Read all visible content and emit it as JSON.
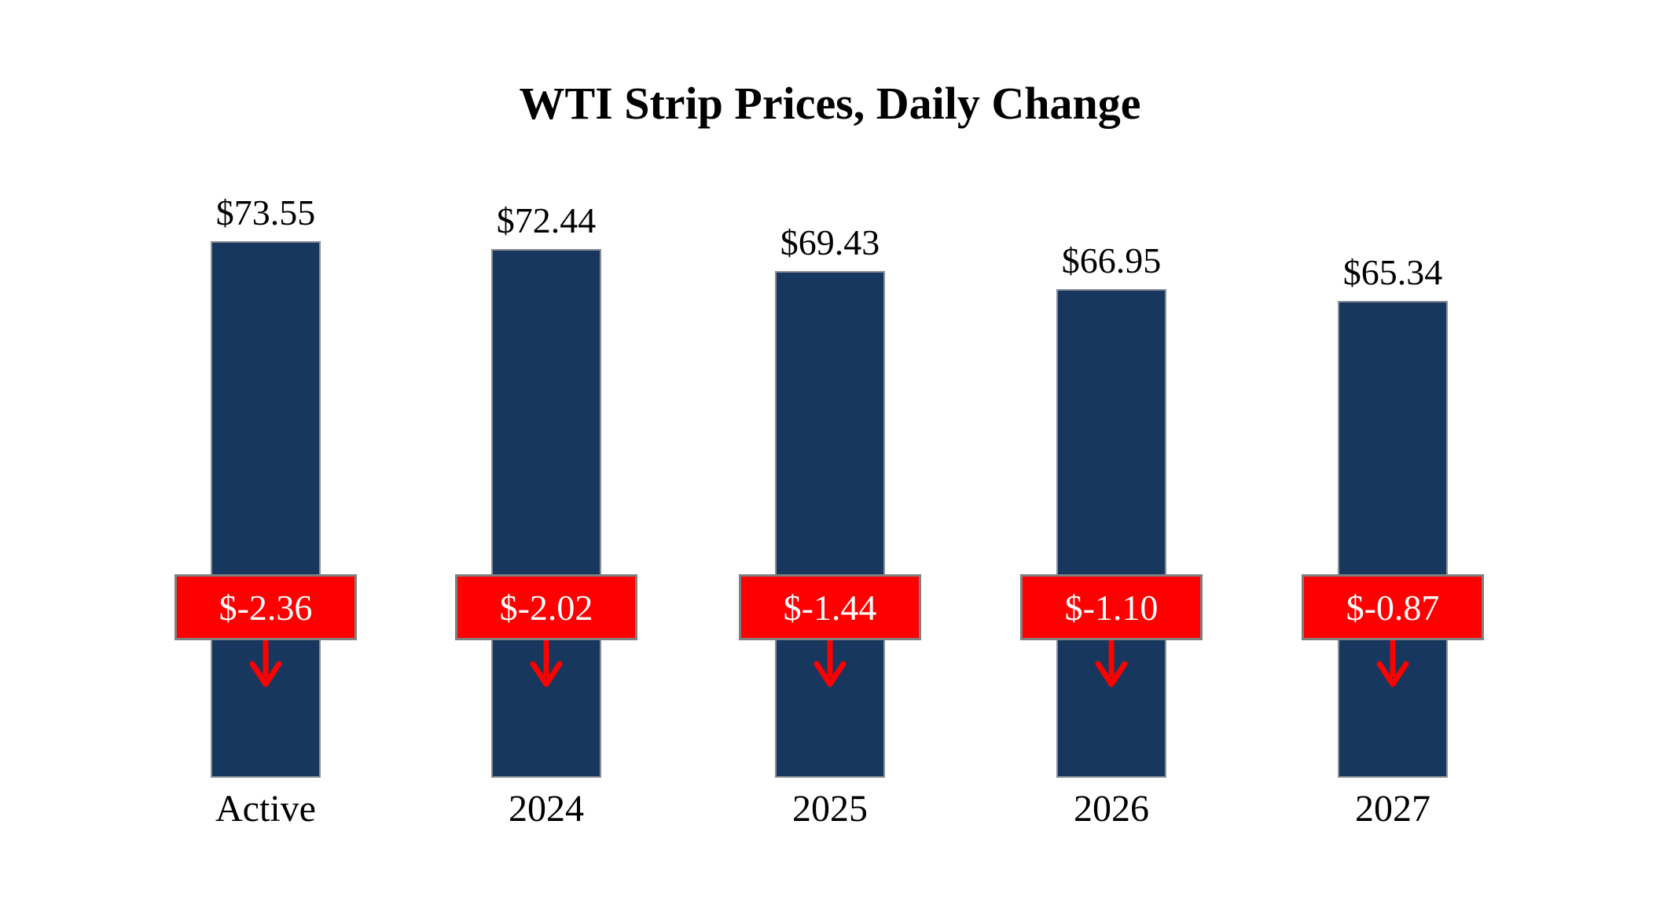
{
  "title": "WTI Strip Prices, Daily Change",
  "chart_data": {
    "type": "bar",
    "categories": [
      "Active",
      "2024",
      "2025",
      "2026",
      "2027"
    ],
    "values": [
      73.55,
      72.44,
      69.43,
      66.95,
      65.34
    ],
    "price_labels": [
      "$73.55",
      "$72.44",
      "$69.43",
      "$66.95",
      "$65.34"
    ],
    "changes": [
      -2.36,
      -2.02,
      -1.44,
      -1.1,
      -0.87
    ],
    "change_labels": [
      "$-2.36",
      "$-2.02",
      "$-1.44",
      "$-1.10",
      "$-0.87"
    ],
    "bar_color": "#17375E",
    "change_box_color": "#FF0000",
    "change_text_color": "#FFFFFF",
    "arrow_color": "#FF0000",
    "ylim": [
      0,
      73.55
    ],
    "grid": false,
    "legend": "none",
    "axes_visible": false
  }
}
